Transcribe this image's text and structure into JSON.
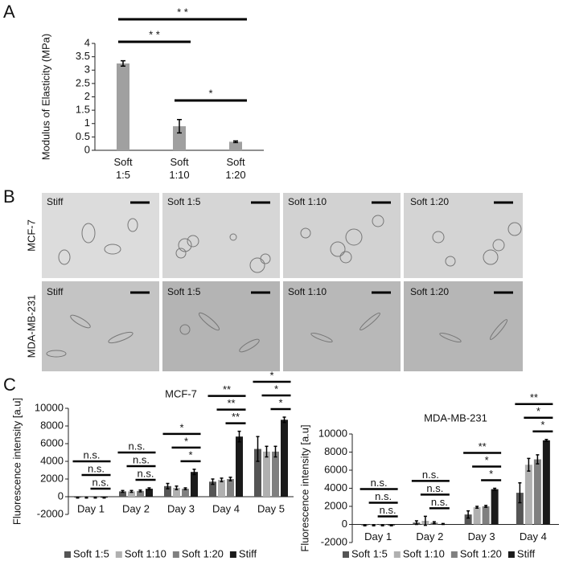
{
  "panel_labels": [
    "A",
    "B",
    "C"
  ],
  "panel_b": {
    "rows": [
      "MCF-7",
      "MDA-MB-231"
    ],
    "columns": [
      "Stiff",
      "Soft 1:5",
      "Soft 1:10",
      "Soft 1:20"
    ]
  },
  "chart_data": [
    {
      "type": "bar",
      "ylabel": "Modulus of Elasticity (MPa)",
      "categories": [
        "Soft 1:5",
        "Soft 1:10",
        "Soft 1:20"
      ],
      "values": [
        3.25,
        0.9,
        0.32
      ],
      "errors": [
        0.1,
        0.25,
        0.03
      ],
      "color": "#a0a0a0",
      "ylim": [
        0,
        4
      ],
      "yticks": [
        0,
        0.5,
        1,
        1.5,
        2,
        2.5,
        3,
        3.5,
        4
      ],
      "significance": [
        {
          "between": [
            0,
            2
          ],
          "label": "* *"
        },
        {
          "between": [
            0,
            1
          ],
          "label": "* *"
        },
        {
          "between": [
            1,
            2
          ],
          "label": "*"
        }
      ]
    },
    {
      "type": "bar",
      "title": "MCF-7",
      "ylabel": "Fluorescence intensity [a.u]",
      "categories": [
        "Day 1",
        "Day 2",
        "Day 3",
        "Day 4",
        "Day 5"
      ],
      "series": [
        {
          "name": "Soft 1:5",
          "color": "#555555",
          "values": [
            -100,
            600,
            1200,
            1700,
            5400
          ],
          "errors": [
            50,
            100,
            300,
            300,
            1400
          ]
        },
        {
          "name": "Soft 1:10",
          "color": "#b0b0b0",
          "values": [
            -100,
            600,
            1000,
            1900,
            5100
          ],
          "errors": [
            50,
            100,
            200,
            200,
            600
          ]
        },
        {
          "name": "Soft 1:20",
          "color": "#808080",
          "values": [
            -100,
            650,
            900,
            2000,
            5100
          ],
          "errors": [
            50,
            100,
            100,
            200,
            600
          ]
        },
        {
          "name": "Stiff",
          "color": "#1a1a1a",
          "values": [
            -100,
            900,
            2800,
            6800,
            8700
          ],
          "errors": [
            50,
            100,
            300,
            600,
            300
          ]
        }
      ],
      "ylim": [
        -2000,
        10000
      ],
      "yticks": [
        -2000,
        0,
        2000,
        4000,
        6000,
        8000,
        10000
      ],
      "significance": [
        [
          "n.s.",
          "n.s.",
          "n.s."
        ],
        [
          "n.s.",
          "n.s.",
          "n.s."
        ],
        [
          "*",
          "*",
          "*"
        ],
        [
          "**",
          "**",
          "**"
        ],
        [
          "*",
          "*",
          "*"
        ]
      ]
    },
    {
      "type": "bar",
      "title": "MDA-MB-231",
      "ylabel": "Fluorescence intensity [a.u]",
      "categories": [
        "Day 1",
        "Day 2",
        "Day 3",
        "Day 4"
      ],
      "series": [
        {
          "name": "Soft 1:5",
          "color": "#555555",
          "values": [
            -100,
            200,
            1100,
            3500
          ],
          "errors": [
            50,
            200,
            400,
            1100
          ]
        },
        {
          "name": "Soft 1:10",
          "color": "#b0b0b0",
          "values": [
            -100,
            400,
            1900,
            6600
          ],
          "errors": [
            50,
            500,
            100,
            700
          ]
        },
        {
          "name": "Soft 1:20",
          "color": "#808080",
          "values": [
            -100,
            200,
            2000,
            7200
          ],
          "errors": [
            50,
            100,
            100,
            500
          ]
        },
        {
          "name": "Stiff",
          "color": "#1a1a1a",
          "values": [
            -100,
            50,
            3900,
            9300
          ],
          "errors": [
            50,
            50,
            100,
            100
          ]
        }
      ],
      "ylim": [
        -2000,
        10000
      ],
      "yticks": [
        -2000,
        0,
        2000,
        4000,
        6000,
        8000,
        10000
      ],
      "significance": [
        [
          "n.s.",
          "n.s.",
          "n.s."
        ],
        [
          "n.s.",
          "n.s.",
          "n.s."
        ],
        [
          "**",
          "*",
          "*"
        ],
        [
          "**",
          "*",
          "*"
        ]
      ]
    }
  ]
}
